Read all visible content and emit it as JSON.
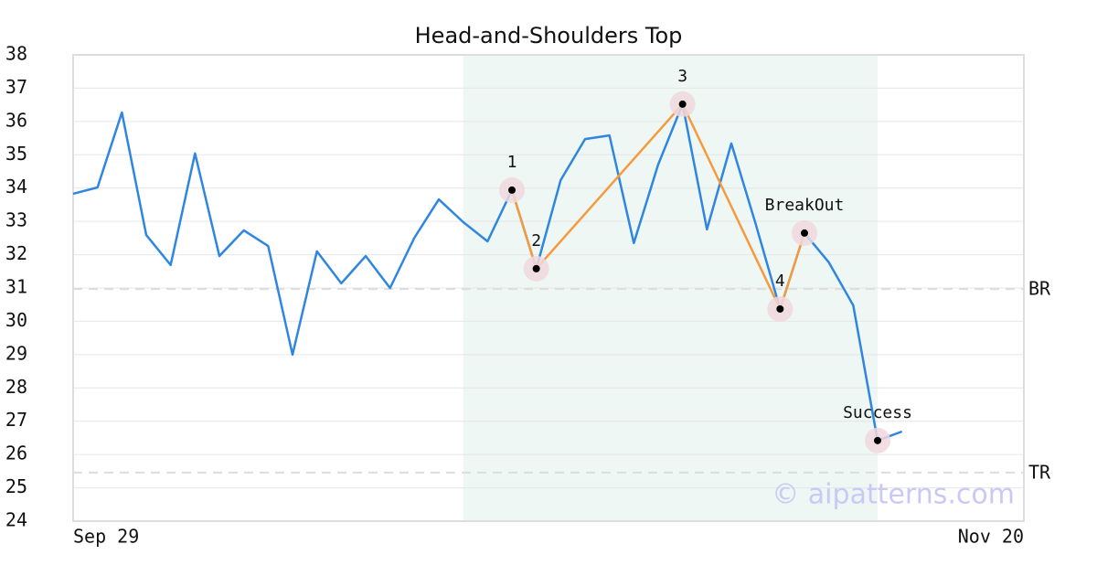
{
  "chart_data": {
    "type": "line",
    "title": "Head-and-Shoulders Top",
    "watermark": "© aipatterns.com",
    "categories": [
      "Sep 29",
      null,
      null,
      null,
      null,
      null,
      null,
      null,
      null,
      null,
      null,
      null,
      null,
      null,
      null,
      null,
      null,
      null,
      null,
      null,
      null,
      null,
      null,
      null,
      null,
      null,
      null,
      null,
      null,
      null,
      null,
      null,
      null,
      null,
      null,
      null,
      null,
      null,
      null,
      "Nov 20"
    ],
    "series": [
      {
        "color": "#2f86e0",
        "values": [
          33.83,
          34.02,
          36.27,
          32.59,
          31.69,
          35.04,
          31.96,
          32.73,
          32.26,
          29.0,
          32.1,
          31.14,
          31.96,
          31.0,
          32.51,
          33.66,
          32.98,
          32.4,
          33.94,
          31.58,
          34.24,
          35.47,
          35.58,
          32.35,
          34.71,
          36.52,
          32.76,
          35.34,
          32.92,
          30.37,
          32.65,
          31.77,
          30.48,
          26.42,
          26.69,
          null,
          null,
          null,
          null,
          null
        ]
      }
    ],
    "pattern_line": {
      "color": "#f59a3e",
      "x": [
        18,
        19,
        25,
        29,
        30
      ],
      "values": [
        33.94,
        31.58,
        36.52,
        30.37,
        32.65
      ]
    },
    "markers": {
      "labels": [
        "1",
        "2",
        "3",
        "4",
        "BreakOut",
        "Success"
      ],
      "x": [
        18,
        19,
        25,
        29,
        30,
        33
      ],
      "values": [
        33.94,
        31.58,
        36.52,
        30.37,
        32.65,
        26.42
      ]
    },
    "highlight": {
      "xlim": [
        16,
        33
      ],
      "color": "#eef7f3"
    },
    "hlines": [
      {
        "label": "BR",
        "value": 30.97
      },
      {
        "label": "TR",
        "value": 25.46
      }
    ],
    "ylim": [
      24,
      38
    ],
    "yticks": [
      24,
      25,
      26,
      27,
      28,
      29,
      30,
      31,
      32,
      33,
      34,
      35,
      36,
      37,
      38
    ],
    "grid": true
  }
}
